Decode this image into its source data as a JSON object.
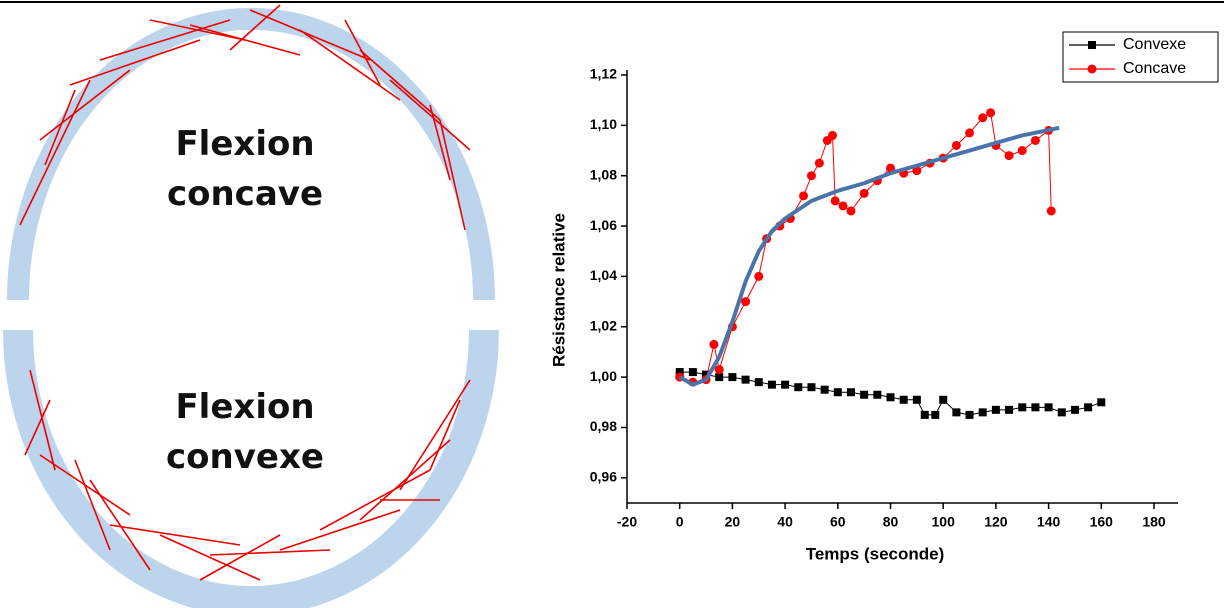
{
  "diagram": {
    "top_label": [
      "Flexion",
      "concave"
    ],
    "bottom_label": [
      "Flexion",
      "convexe"
    ]
  },
  "chart_data": {
    "type": "line",
    "x_label": "Temps (seconde)",
    "y_label": "Résistance relative",
    "xlim": [
      -20,
      180
    ],
    "xticks": [
      -20,
      0,
      20,
      40,
      60,
      80,
      100,
      120,
      140,
      160,
      180
    ],
    "ylim": [
      0.95,
      1.12
    ],
    "yticks": [
      {
        "value": 0.96,
        "label": "0,96"
      },
      {
        "value": 0.98,
        "label": "0,98"
      },
      {
        "value": 1.0,
        "label": "1,00"
      },
      {
        "value": 1.02,
        "label": "1,02"
      },
      {
        "value": 1.04,
        "label": "1,04"
      },
      {
        "value": 1.06,
        "label": "1,06"
      },
      {
        "value": 1.08,
        "label": "1,08"
      },
      {
        "value": 1.1,
        "label": "1,10"
      },
      {
        "value": 1.12,
        "label": "1,12"
      }
    ],
    "series": [
      {
        "name": "Convexe",
        "color": "#000000",
        "marker": "square",
        "x": [
          0,
          5,
          10,
          15,
          20,
          25,
          30,
          35,
          40,
          45,
          50,
          55,
          60,
          65,
          70,
          75,
          80,
          85,
          90,
          93,
          97,
          100,
          105,
          110,
          115,
          120,
          125,
          130,
          135,
          140,
          145,
          150,
          155,
          160
        ],
        "values": [
          1.002,
          1.002,
          1.001,
          1.0,
          1.0,
          0.999,
          0.998,
          0.997,
          0.997,
          0.996,
          0.996,
          0.995,
          0.994,
          0.994,
          0.993,
          0.993,
          0.992,
          0.991,
          0.991,
          0.985,
          0.985,
          0.991,
          0.986,
          0.985,
          0.986,
          0.987,
          0.987,
          0.988,
          0.988,
          0.988,
          0.986,
          0.987,
          0.988,
          0.99
        ]
      },
      {
        "name": "Concave",
        "color": "#ff0000",
        "marker": "circle",
        "x": [
          0,
          5,
          10,
          13,
          15,
          20,
          25,
          30,
          33,
          38,
          42,
          47,
          50,
          53,
          56,
          58,
          59,
          62,
          65,
          70,
          75,
          80,
          85,
          90,
          95,
          100,
          105,
          110,
          115,
          118,
          120,
          125,
          130,
          135,
          140,
          141
        ],
        "values": [
          1.0,
          0.998,
          0.999,
          1.013,
          1.003,
          1.02,
          1.03,
          1.04,
          1.055,
          1.06,
          1.063,
          1.072,
          1.08,
          1.085,
          1.094,
          1.096,
          1.07,
          1.068,
          1.066,
          1.073,
          1.078,
          1.083,
          1.081,
          1.082,
          1.085,
          1.087,
          1.092,
          1.097,
          1.103,
          1.105,
          1.092,
          1.088,
          1.09,
          1.094,
          1.098,
          1.066
        ]
      }
    ],
    "fit": {
      "color": "#4a74a8",
      "x": [
        0,
        5,
        10,
        15,
        20,
        25,
        30,
        35,
        40,
        50,
        60,
        70,
        80,
        90,
        100,
        110,
        120,
        130,
        144
      ],
      "values": [
        1.0,
        0.997,
        0.999,
        1.008,
        1.022,
        1.038,
        1.05,
        1.058,
        1.063,
        1.07,
        1.074,
        1.077,
        1.081,
        1.084,
        1.087,
        1.09,
        1.093,
        1.096,
        1.099
      ]
    },
    "legend": "upper right"
  }
}
